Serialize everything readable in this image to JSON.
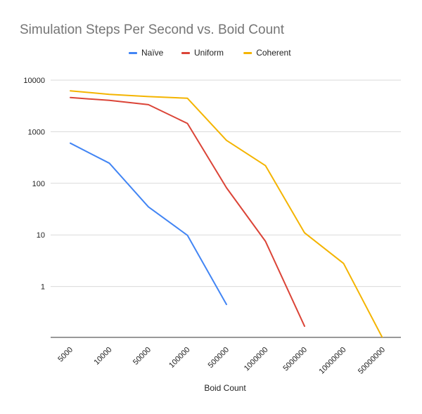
{
  "chart_data": {
    "type": "line",
    "title": "Simulation Steps Per Second vs. Boid Count",
    "xlabel": "Boid Count",
    "ylabel": "",
    "y_scale": "log",
    "ylim": [
      0.1,
      10000
    ],
    "y_ticks": [
      "1",
      "10",
      "100",
      "1000",
      "10000"
    ],
    "grid": true,
    "legend_position": "top",
    "categories": [
      "5000",
      "10000",
      "50000",
      "100000",
      "500000",
      "1000000",
      "5000000",
      "10000000",
      "50000000"
    ],
    "series": [
      {
        "name": "Naïve",
        "color": "#4285F4",
        "values": [
          600,
          245,
          35,
          9.8,
          0.45,
          null,
          null,
          null,
          null
        ]
      },
      {
        "name": "Uniform",
        "color": "#DB4437",
        "values": [
          4600,
          4050,
          3350,
          1450,
          82,
          7.5,
          0.17,
          null,
          null
        ]
      },
      {
        "name": "Coherent",
        "color": "#F4B400",
        "values": [
          6200,
          5300,
          4800,
          4450,
          680,
          220,
          11,
          2.8,
          0.1
        ]
      }
    ]
  }
}
